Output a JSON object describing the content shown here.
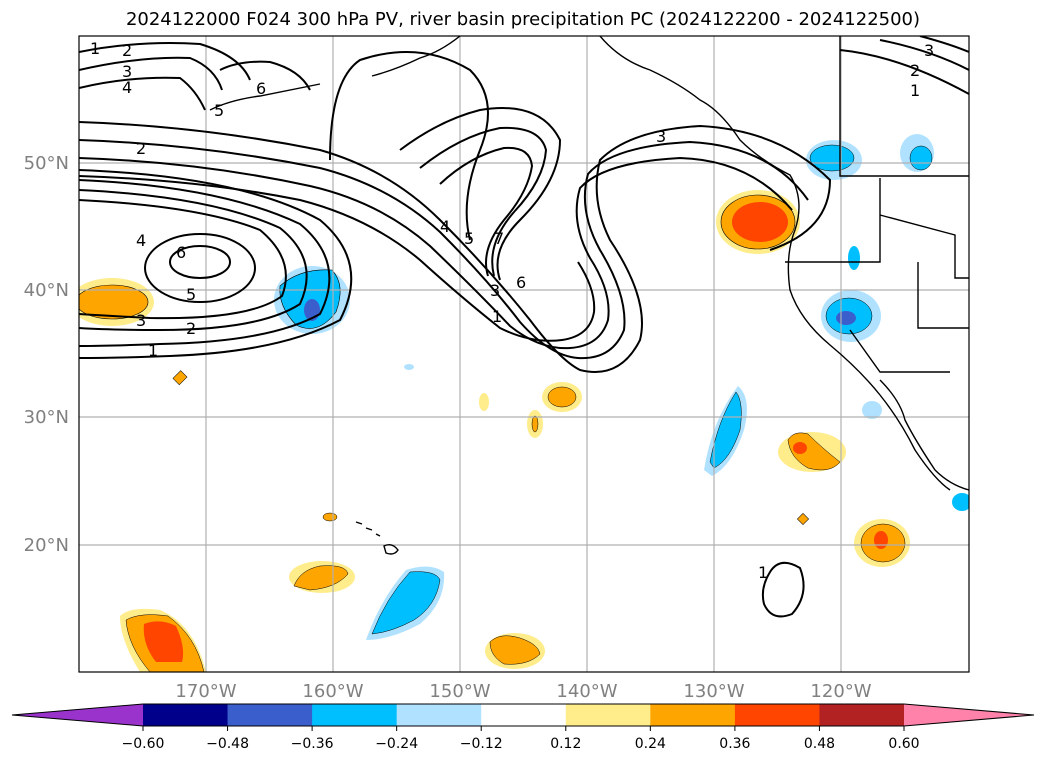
{
  "title": "2024122000 F024 300 hPa PV, river basin precipitation PC (2024122200 - 2024122500)",
  "map": {
    "lon_labels": [
      "170°W",
      "160°W",
      "150°W",
      "140°W",
      "130°W",
      "120°W"
    ],
    "lat_labels": [
      "50°N",
      "40°N",
      "30°N",
      "20°N"
    ],
    "pv_contour_labels": [
      "1",
      "2",
      "3",
      "4",
      "5",
      "6",
      "7"
    ]
  },
  "colorbar": {
    "ticks": [
      "−0.60",
      "−0.48",
      "−0.36",
      "−0.24",
      "−0.12",
      "0.12",
      "0.24",
      "0.36",
      "0.48",
      "0.60"
    ],
    "colors": [
      "#9933cc",
      "#00008b",
      "#3a5fcd",
      "#00bfff",
      "#b0e2ff",
      "#ffffff",
      "#ffec8b",
      "#ffa500",
      "#ff4500",
      "#b22222",
      "#ff82ab"
    ]
  }
}
